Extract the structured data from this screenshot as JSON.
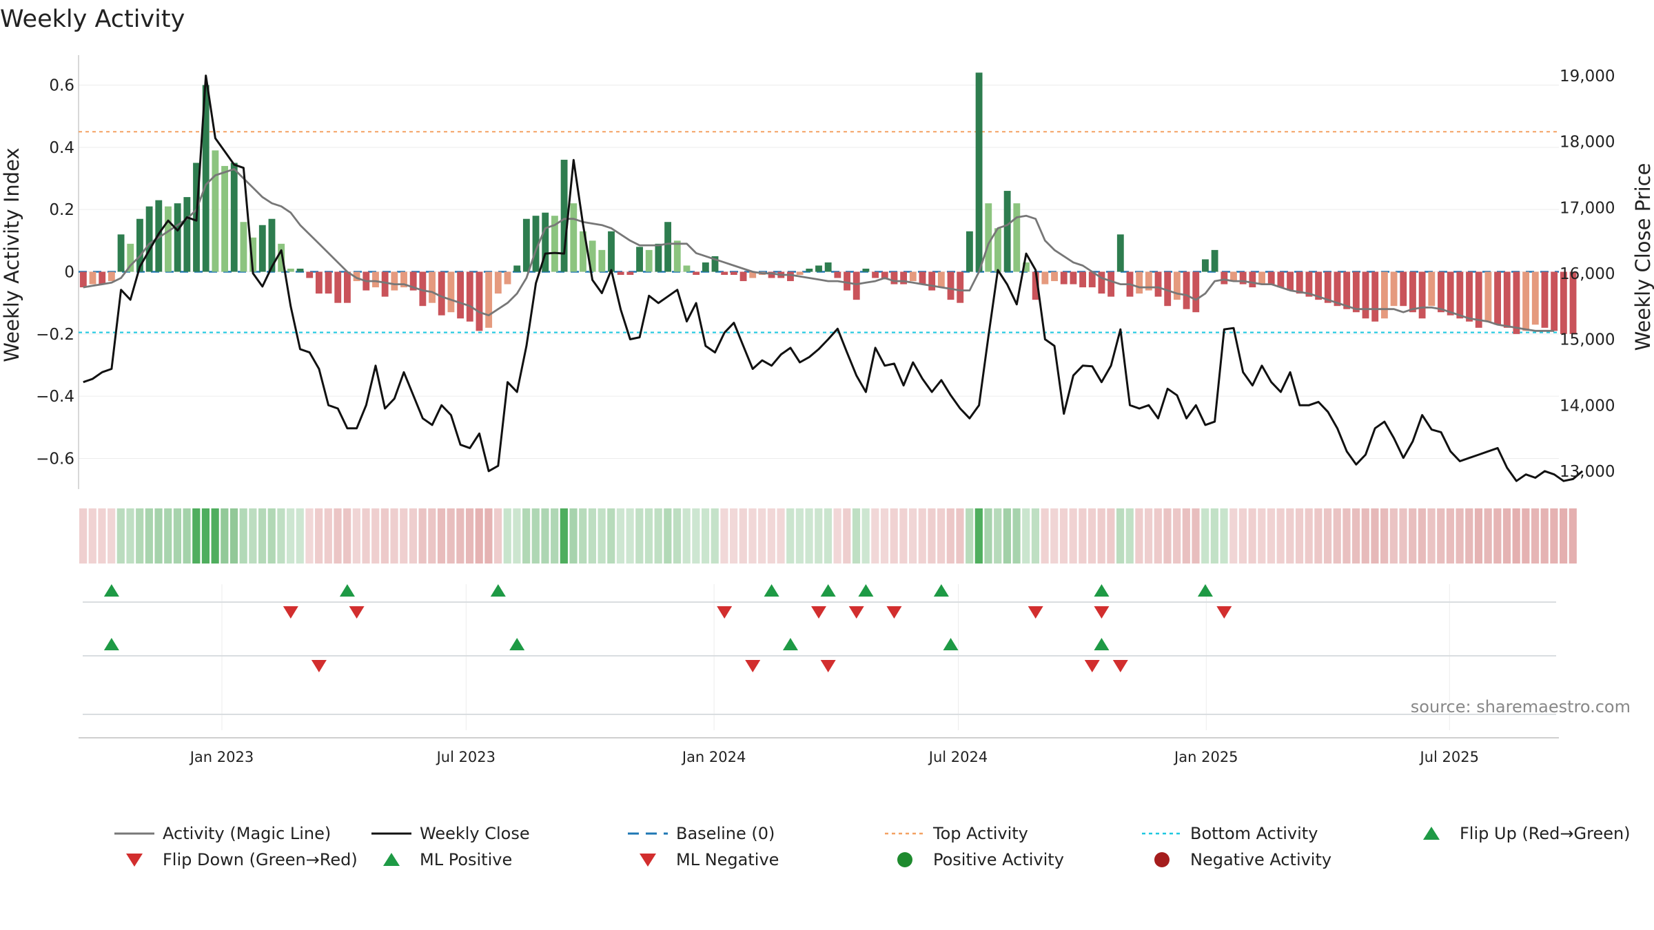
{
  "chart_data": {
    "type": "bar+line",
    "title": "Weekly Activity",
    "ylabel_left": "Weekly Activity Index",
    "ylabel_right": "Weekly Close Price",
    "ylim_left": [
      -0.7,
      0.7
    ],
    "ylim_right": [
      12550,
      19400
    ],
    "yticks_left": [
      0.6,
      0.4,
      0.2,
      0,
      -0.2,
      -0.4,
      -0.6
    ],
    "ytick_labels_left": [
      "0.6",
      "0.4",
      "0.2",
      "0",
      "−0.2",
      "−0.4",
      "−0.6"
    ],
    "yticks_right": [
      19000,
      18000,
      17000,
      16000,
      15000,
      14000,
      13000
    ],
    "ytick_labels_right": [
      "19,000",
      "18,000",
      "17,000",
      "16,000",
      "15,000",
      "14,000",
      "13,000"
    ],
    "x_range_weeks": [
      0,
      157
    ],
    "x_ticks": [
      {
        "label": "Jan 2023",
        "week": 15.2
      },
      {
        "label": "Jul 2023",
        "week": 41.1
      },
      {
        "label": "Jan 2024",
        "week": 67.4
      },
      {
        "label": "Jul 2024",
        "week": 93.3
      },
      {
        "label": "Jan 2025",
        "week": 119.6
      },
      {
        "label": "Jul 2025",
        "week": 145.4
      }
    ],
    "top_activity": 0.45,
    "bottom_activity": -0.195,
    "baseline": 0,
    "activity": [
      -0.05,
      -0.04,
      -0.04,
      -0.03,
      0.12,
      0.09,
      0.17,
      0.21,
      0.23,
      0.21,
      0.22,
      0.24,
      0.35,
      0.6,
      0.39,
      0.34,
      0.35,
      0.16,
      0.11,
      0.15,
      0.17,
      0.09,
      0.01,
      0.01,
      -0.02,
      -0.07,
      -0.07,
      -0.1,
      -0.1,
      -0.03,
      -0.06,
      -0.05,
      -0.08,
      -0.06,
      -0.05,
      -0.06,
      -0.11,
      -0.1,
      -0.14,
      -0.13,
      -0.15,
      -0.16,
      -0.19,
      -0.18,
      -0.07,
      -0.04,
      0.02,
      0.17,
      0.18,
      0.19,
      0.18,
      0.36,
      0.22,
      0.13,
      0.1,
      0.07,
      0.13,
      -0.01,
      -0.01,
      0.08,
      0.07,
      0.09,
      0.16,
      0.1,
      0.02,
      -0.01,
      0.03,
      0.05,
      -0.01,
      -0.01,
      -0.03,
      -0.02,
      -0.01,
      -0.02,
      -0.02,
      -0.03,
      -0.01,
      0.01,
      0.02,
      0.03,
      -0.02,
      -0.06,
      -0.09,
      0.01,
      -0.02,
      -0.02,
      -0.04,
      -0.04,
      -0.03,
      -0.04,
      -0.06,
      -0.05,
      -0.09,
      -0.1,
      0.13,
      0.64,
      0.22,
      0.14,
      0.26,
      0.22,
      0.03,
      -0.09,
      -0.04,
      -0.03,
      -0.04,
      -0.04,
      -0.05,
      -0.05,
      -0.07,
      -0.08,
      0.12,
      -0.08,
      -0.07,
      -0.06,
      -0.08,
      -0.11,
      -0.09,
      -0.12,
      -0.13,
      0.04,
      0.07,
      -0.04,
      -0.03,
      -0.04,
      -0.05,
      -0.04,
      -0.04,
      -0.05,
      -0.06,
      -0.07,
      -0.08,
      -0.09,
      -0.1,
      -0.11,
      -0.12,
      -0.13,
      -0.15,
      -0.16,
      -0.15,
      -0.11,
      -0.11,
      -0.13,
      -0.15,
      -0.11,
      -0.13,
      -0.14,
      -0.15,
      -0.16,
      -0.18,
      -0.16,
      -0.17,
      -0.18,
      -0.2,
      -0.19,
      -0.17,
      -0.18,
      -0.19,
      -0.2,
      -0.2
    ],
    "weekly_close": [
      14300,
      14350,
      14450,
      14500,
      15700,
      15550,
      16050,
      16300,
      16550,
      16750,
      16600,
      16800,
      16750,
      18950,
      18000,
      17800,
      17600,
      17550,
      15950,
      15750,
      16050,
      16300,
      15450,
      14800,
      14750,
      14500,
      13950,
      13900,
      13600,
      13600,
      13950,
      14550,
      13900,
      14050,
      14450,
      14100,
      13750,
      13650,
      13950,
      13800,
      13350,
      13300,
      13520,
      12950,
      13030,
      14300,
      14150,
      14850,
      15800,
      16250,
      16260,
      16250,
      17670,
      16690,
      15850,
      15650,
      16000,
      15400,
      14950,
      14980,
      15610,
      15500,
      15600,
      15700,
      15220,
      15500,
      14850,
      14750,
      15050,
      15200,
      14850,
      14500,
      14630,
      14550,
      14720,
      14820,
      14600,
      14680,
      14800,
      14950,
      15110,
      14750,
      14400,
      14150,
      14820,
      14550,
      14580,
      14250,
      14600,
      14350,
      14150,
      14330,
      14100,
      13900,
      13750,
      13950,
      15000,
      16000,
      15780,
      15480,
      16250,
      16000,
      14950,
      14850,
      13820,
      14400,
      14550,
      14540,
      14300,
      14550,
      15100,
      13950,
      13900,
      13950,
      13750,
      14200,
      14100,
      13750,
      13950,
      13650,
      13700,
      15100,
      15120,
      14450,
      14250,
      14550,
      14300,
      14150,
      14450,
      13950,
      13950,
      14000,
      13850,
      13600,
      13250,
      13050,
      13200,
      13600,
      13700,
      13450,
      13150,
      13400,
      13800,
      13580,
      13540,
      13250,
      13100,
      13150,
      13200,
      13250,
      13300,
      13000,
      12800,
      12900,
      12850,
      12950,
      12900,
      12800,
      12830,
      12950
    ],
    "magic_line": [
      -0.05,
      -0.045,
      -0.04,
      -0.035,
      -0.02,
      0.02,
      0.05,
      0.09,
      0.11,
      0.13,
      0.15,
      0.17,
      0.2,
      0.28,
      0.31,
      0.32,
      0.33,
      0.3,
      0.27,
      0.24,
      0.22,
      0.21,
      0.19,
      0.15,
      0.12,
      0.09,
      0.06,
      0.03,
      0.0,
      -0.02,
      -0.03,
      -0.03,
      -0.035,
      -0.04,
      -0.04,
      -0.05,
      -0.06,
      -0.065,
      -0.08,
      -0.09,
      -0.1,
      -0.11,
      -0.13,
      -0.14,
      -0.12,
      -0.1,
      -0.07,
      -0.02,
      0.07,
      0.14,
      0.15,
      0.17,
      0.17,
      0.16,
      0.155,
      0.15,
      0.14,
      0.12,
      0.1,
      0.085,
      0.085,
      0.085,
      0.09,
      0.09,
      0.09,
      0.06,
      0.05,
      0.04,
      0.03,
      0.02,
      0.01,
      0.0,
      -0.005,
      -0.005,
      -0.01,
      -0.01,
      -0.015,
      -0.02,
      -0.025,
      -0.03,
      -0.03,
      -0.035,
      -0.04,
      -0.035,
      -0.03,
      -0.02,
      -0.03,
      -0.03,
      -0.035,
      -0.04,
      -0.045,
      -0.05,
      -0.055,
      -0.06,
      -0.06,
      0.0,
      0.09,
      0.14,
      0.15,
      0.175,
      0.18,
      0.17,
      0.1,
      0.07,
      0.05,
      0.03,
      0.02,
      0.0,
      -0.02,
      -0.03,
      -0.04,
      -0.04,
      -0.05,
      -0.05,
      -0.05,
      -0.06,
      -0.07,
      -0.075,
      -0.09,
      -0.07,
      -0.03,
      -0.025,
      -0.03,
      -0.03,
      -0.035,
      -0.04,
      -0.04,
      -0.05,
      -0.06,
      -0.065,
      -0.07,
      -0.08,
      -0.09,
      -0.1,
      -0.11,
      -0.12,
      -0.12,
      -0.12,
      -0.12,
      -0.12,
      -0.13,
      -0.12,
      -0.115,
      -0.115,
      -0.12,
      -0.13,
      -0.14,
      -0.15,
      -0.155,
      -0.16,
      -0.17,
      -0.175,
      -0.18,
      -0.185,
      -0.19,
      -0.19,
      -0.19
    ],
    "signal_strip_weeks": {
      "positive_dark": [
        4,
        5,
        6,
        7,
        8,
        9,
        10,
        11,
        12,
        13,
        14,
        15,
        16,
        17,
        18,
        19,
        20,
        21,
        45,
        46,
        47,
        48,
        49,
        50,
        51,
        52,
        53,
        54,
        55,
        56,
        57,
        58,
        59,
        60,
        61,
        62,
        63,
        64,
        65,
        66,
        67,
        75,
        76,
        78,
        82,
        94,
        95,
        96,
        97,
        98,
        99,
        100,
        101,
        111,
        120,
        121
      ],
      "strongest": [
        12,
        13,
        14,
        51,
        95
      ]
    },
    "flip_up": [
      3.5,
      28.5,
      44.5,
      73.5,
      79.5,
      83.5,
      91.5,
      108.5,
      119.5
    ],
    "flip_down": [
      22.5,
      29.5,
      68.5,
      78.5,
      82.5,
      86.5,
      101.5,
      108.5,
      121.5
    ],
    "ml_positive": [
      3.5,
      46.5,
      75.5,
      92.5,
      108.5
    ],
    "ml_negative": [
      25.5,
      71.5,
      79.5,
      107.5,
      110.5
    ],
    "colors": {
      "pos_dark": "#2e7d4f",
      "pos_light": "#8cc47f",
      "neg_dark": "#c9535a",
      "neg_light": "#e59a7e",
      "close_line": "#111111",
      "magic_line": "#777777",
      "baseline": "#1f77b4",
      "top_line": "#f4a263",
      "bottom_line": "#1fc8e0",
      "marker_up": "#1e9a45",
      "marker_down": "#d22e2e",
      "dot_pos": "#1e8a2e",
      "dot_neg": "#a51d1d"
    }
  },
  "legend": [
    {
      "label": "Activity (Magic Line)",
      "kind": "line-gray"
    },
    {
      "label": "Weekly Close",
      "kind": "line-black"
    },
    {
      "label": "Baseline (0)",
      "kind": "dash-blue"
    },
    {
      "label": "Top Activity",
      "kind": "dot-orange"
    },
    {
      "label": "Bottom Activity",
      "kind": "dot-cyan"
    },
    {
      "label": "Flip Up (Red→Green)",
      "kind": "tri-up"
    },
    {
      "label": "Flip Down (Green→Red)",
      "kind": "tri-down"
    },
    {
      "label": "ML Positive",
      "kind": "tri-up"
    },
    {
      "label": "ML Negative",
      "kind": "tri-down"
    },
    {
      "label": "Positive Activity",
      "kind": "dot-green"
    },
    {
      "label": "Negative Activity",
      "kind": "dot-red"
    }
  ],
  "source": "source: sharemaestro.com"
}
